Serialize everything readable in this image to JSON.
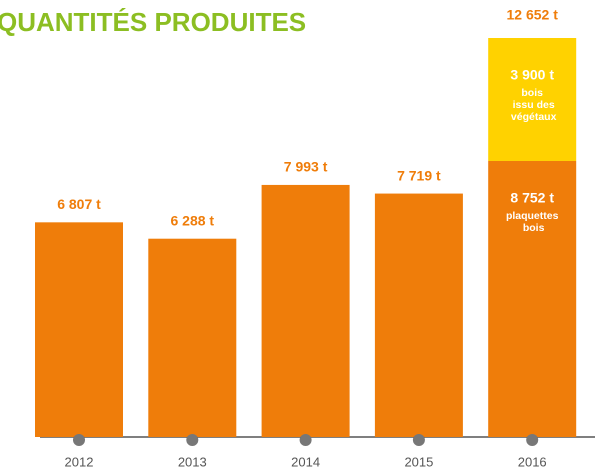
{
  "chart_data": {
    "type": "stacked_bar",
    "title": "QUANTITÉS PRODUITES",
    "categories": [
      "2012",
      "2013",
      "2014",
      "2015",
      "2016"
    ],
    "series": [
      {
        "name": "plaquettes bois",
        "color": "#ef7d0a",
        "values": [
          6807,
          6288,
          7993,
          7719,
          8752
        ],
        "value_labels": [
          "6 807 t",
          "6 288 t",
          "7 993 t",
          "7 719 t",
          "8 752 t"
        ]
      },
      {
        "name": "bois issu des végétaux",
        "color": "#ffd200",
        "values": [
          null,
          null,
          null,
          null,
          3900
        ],
        "value_labels": [
          null,
          null,
          null,
          null,
          "3 900 t"
        ]
      }
    ],
    "totals": [
      null,
      null,
      null,
      null,
      12652
    ],
    "total_labels": [
      null,
      null,
      null,
      null,
      "12 652 t"
    ],
    "label_color": "#ef7d0a",
    "title_color": "#8cbe22"
  }
}
